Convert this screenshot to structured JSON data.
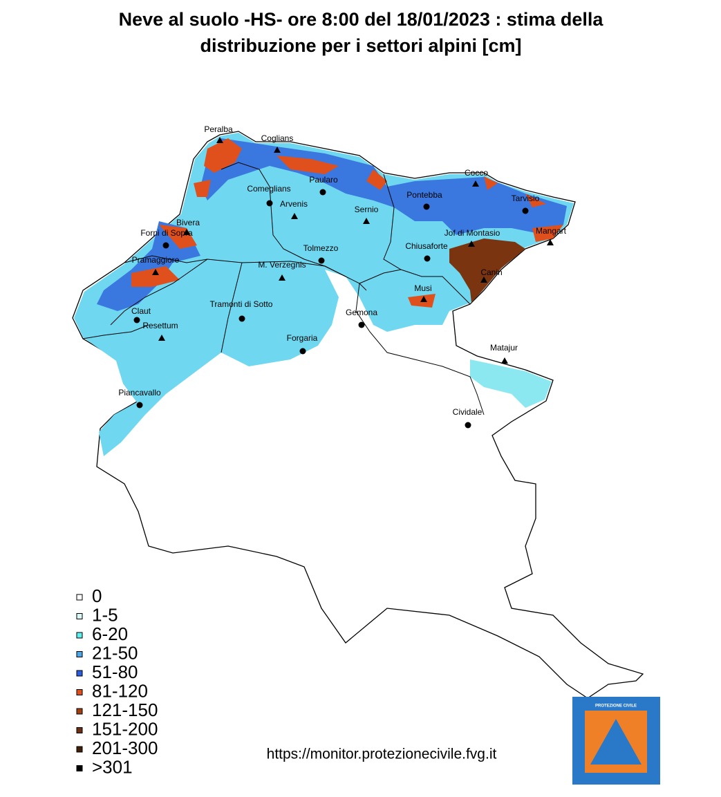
{
  "header": {
    "title_lines": [
      "Neve al suolo -HS- ore 8:00 del  18/01/2023 : stima della",
      "distribuzione per i settori alpini [cm]"
    ]
  },
  "places": [
    {
      "label": "Peralba",
      "kind": "peak"
    },
    {
      "label": "Coglians",
      "kind": "peak"
    },
    {
      "label": "Paularo",
      "kind": "town"
    },
    {
      "label": "Comeglians",
      "kind": "town"
    },
    {
      "label": "Arvenis",
      "kind": "peak"
    },
    {
      "label": "Sernio",
      "kind": "peak"
    },
    {
      "label": "Cocco",
      "kind": "peak"
    },
    {
      "label": "Pontebba",
      "kind": "town"
    },
    {
      "label": "Tarvisio",
      "kind": "town"
    },
    {
      "label": "Bivera",
      "kind": "peak"
    },
    {
      "label": "Forni di Sopra",
      "kind": "town"
    },
    {
      "label": "Jof di Montasio",
      "kind": "peak"
    },
    {
      "label": "Mangart",
      "kind": "peak"
    },
    {
      "label": "Chiusaforte",
      "kind": "town"
    },
    {
      "label": "Tolmezzo",
      "kind": "town"
    },
    {
      "label": "Pramaggiore",
      "kind": "peak"
    },
    {
      "label": "M. Verzegnis",
      "kind": "peak"
    },
    {
      "label": "Canin",
      "kind": "peak"
    },
    {
      "label": "Musi",
      "kind": "peak"
    },
    {
      "label": "Claut",
      "kind": "town"
    },
    {
      "label": "Tramonti di Sotto",
      "kind": "town"
    },
    {
      "label": "Gemona",
      "kind": "town"
    },
    {
      "label": "Resettum",
      "kind": "peak"
    },
    {
      "label": "Forgaria",
      "kind": "town"
    },
    {
      "label": "Matajur",
      "kind": "peak"
    },
    {
      "label": "Piancavallo",
      "kind": "town"
    },
    {
      "label": "Cividale",
      "kind": "town"
    }
  ],
  "legend": [
    {
      "label": "0",
      "color": "#ffffff"
    },
    {
      "label": "1-5",
      "color": "#d8f8f8"
    },
    {
      "label": "6-20",
      "color": "#5ef0f0"
    },
    {
      "label": "21-50",
      "color": "#4aa8e8"
    },
    {
      "label": "51-80",
      "color": "#2c5ce0"
    },
    {
      "label": "81-120",
      "color": "#e0501c"
    },
    {
      "label": "121-150",
      "color": "#a04010"
    },
    {
      "label": "151-200",
      "color": "#6c3010"
    },
    {
      "label": "201-300",
      "color": "#402008"
    },
    {
      "label": ">301",
      "color": "#000000"
    }
  ],
  "footer": {
    "url": "https://monitor.protezionecivile.fvg.it",
    "logo_text": "PROTEZIONE CIVILE"
  }
}
